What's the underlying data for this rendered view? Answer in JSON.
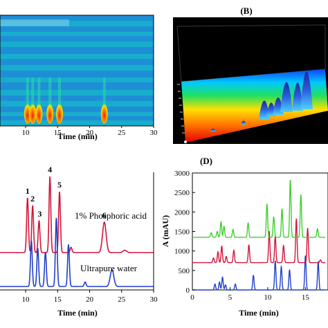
{
  "colors": {
    "heatmap_bg": "#1e8fd6",
    "heatmap_band": "#17b7c9",
    "heatmap_hot": "#e8261a",
    "surface_bg": "#000000",
    "red_trace": "#d4143a",
    "blue_trace": "#1f3fc7",
    "green_trace": "#3fcf2f"
  },
  "panel_a": {
    "xlabel": "Time (min)",
    "xticks": [
      "10",
      "15",
      "20",
      "25",
      "30"
    ]
  },
  "panel_b": {
    "letter": "(B)"
  },
  "panel_c": {
    "xlabel": "Time (min)",
    "xticks": [
      "10",
      "15",
      "20",
      "25",
      "30"
    ],
    "peak_labels": [
      "1",
      "2",
      "3",
      "4",
      "5",
      "6"
    ],
    "annotations": [
      "1% Phosphoric acid",
      "Ultrapure water"
    ]
  },
  "panel_d": {
    "letter": "(D)",
    "xlabel": "Time (min)",
    "ylabel": "A (mAU)",
    "xticks": [
      "0",
      "5",
      "10",
      "15"
    ],
    "yticks": [
      "0",
      "500",
      "1000",
      "1500",
      "2000",
      "2500",
      "3000"
    ]
  },
  "chart_data": [
    {
      "type": "heatmap",
      "panel": "A",
      "xlabel": "Time (min)",
      "xlim": [
        6,
        30
      ],
      "hotspots_x": [
        10.3,
        11.1,
        12.1,
        13.8,
        15.3,
        22.3
      ]
    },
    {
      "type": "area",
      "panel": "B",
      "title": "(B)"
    },
    {
      "type": "line",
      "panel": "C",
      "xlabel": "Time (min)",
      "xlim": [
        6,
        30
      ],
      "series": [
        {
          "name": "1% Phosphoric acid",
          "color": "#d4143a",
          "peaks": [
            {
              "x": 10.3,
              "h": 0.72,
              "label": "1"
            },
            {
              "x": 11.1,
              "h": 0.62,
              "label": "2"
            },
            {
              "x": 12.1,
              "h": 0.42,
              "label": "3"
            },
            {
              "x": 13.8,
              "h": 1.0,
              "label": "4"
            },
            {
              "x": 15.3,
              "h": 0.8,
              "label": "5"
            },
            {
              "x": 17.1,
              "h": 0.07
            },
            {
              "x": 22.3,
              "h": 0.4,
              "label": "6"
            },
            {
              "x": 25.5,
              "h": 0.03
            }
          ]
        },
        {
          "name": "Ultrapure water",
          "color": "#1f3fc7",
          "peaks": [
            {
              "x": 10.9,
              "h": 0.6
            },
            {
              "x": 11.9,
              "h": 0.5
            },
            {
              "x": 13.1,
              "h": 0.45
            },
            {
              "x": 14.8,
              "h": 0.9
            },
            {
              "x": 16.7,
              "h": 0.55
            },
            {
              "x": 19.3,
              "h": 0.06
            },
            {
              "x": 23.5,
              "h": 0.22
            }
          ]
        }
      ]
    },
    {
      "type": "line",
      "panel": "D",
      "xlabel": "Time (min)",
      "ylabel": "A (mAU)",
      "xlim": [
        0,
        18
      ],
      "ylim": [
        0,
        3000
      ],
      "series": [
        {
          "name": "",
          "color": "#1f3fc7",
          "baseline": 0,
          "peaks": [
            {
              "x": 3.0,
              "h": 150
            },
            {
              "x": 3.6,
              "h": 200
            },
            {
              "x": 4.0,
              "h": 330
            },
            {
              "x": 4.4,
              "h": 130
            },
            {
              "x": 5.7,
              "h": 150
            },
            {
              "x": 8.1,
              "h": 380
            },
            {
              "x": 11.0,
              "h": 750
            },
            {
              "x": 11.8,
              "h": 600
            },
            {
              "x": 12.9,
              "h": 520
            },
            {
              "x": 15.0,
              "h": 880
            },
            {
              "x": 16.7,
              "h": 720
            }
          ]
        },
        {
          "name": "",
          "color": "#d4143a",
          "baseline": 700,
          "peaks": [
            {
              "x": 2.8,
              "h": 120
            },
            {
              "x": 3.4,
              "h": 280
            },
            {
              "x": 3.9,
              "h": 430
            },
            {
              "x": 4.5,
              "h": 160
            },
            {
              "x": 5.5,
              "h": 320
            },
            {
              "x": 7.5,
              "h": 460
            },
            {
              "x": 10.2,
              "h": 810
            },
            {
              "x": 11.0,
              "h": 680
            },
            {
              "x": 12.1,
              "h": 440
            },
            {
              "x": 13.8,
              "h": 1130
            },
            {
              "x": 15.3,
              "h": 890
            },
            {
              "x": 17.0,
              "h": 70
            }
          ]
        },
        {
          "name": "",
          "color": "#3fcf2f",
          "baseline": 1350,
          "peaks": [
            {
              "x": 2.5,
              "h": 120
            },
            {
              "x": 3.3,
              "h": 150
            },
            {
              "x": 3.8,
              "h": 400
            },
            {
              "x": 4.2,
              "h": 280
            },
            {
              "x": 5.4,
              "h": 200
            },
            {
              "x": 7.4,
              "h": 370
            },
            {
              "x": 9.9,
              "h": 860
            },
            {
              "x": 10.8,
              "h": 530
            },
            {
              "x": 11.9,
              "h": 740
            },
            {
              "x": 13.0,
              "h": 1480
            },
            {
              "x": 14.4,
              "h": 1100
            },
            {
              "x": 16.6,
              "h": 220
            }
          ]
        }
      ]
    }
  ]
}
